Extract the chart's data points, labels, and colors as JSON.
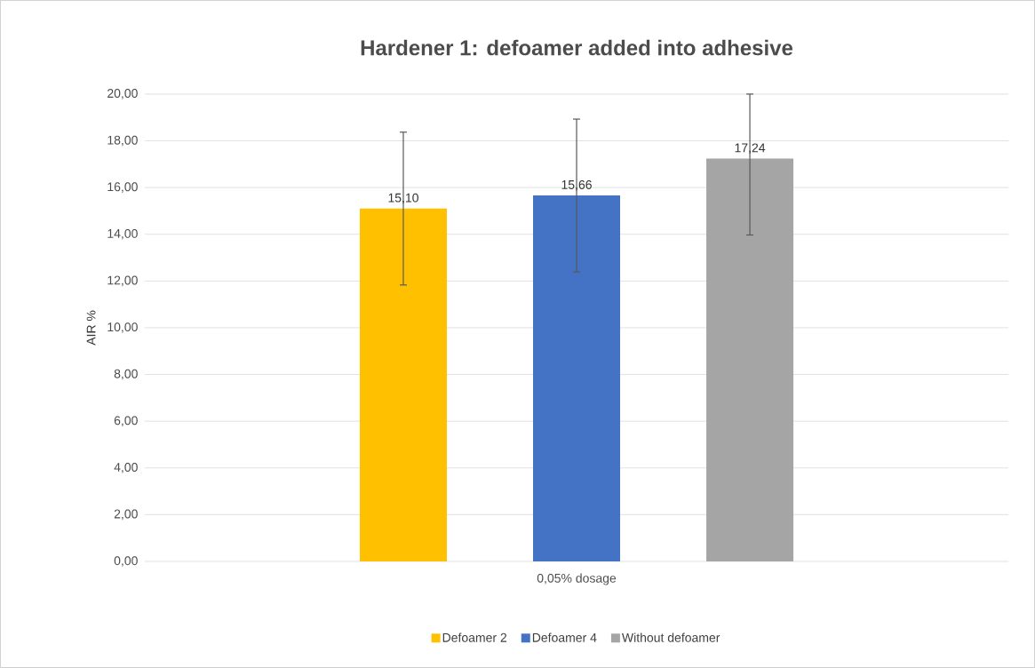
{
  "chart_data": {
    "type": "bar",
    "title": "Hardener 1: defoamer added into adhesive",
    "ylabel": "AIR %",
    "categories": [
      "0,05% dosage"
    ],
    "series": [
      {
        "name": "Defoamer 2",
        "color": "#ffc000",
        "values": [
          15.1
        ],
        "errors": [
          3.27
        ],
        "value_labels": [
          "15,10"
        ]
      },
      {
        "name": "Defoamer 4",
        "color": "#4472c4",
        "values": [
          15.66
        ],
        "errors": [
          3.27
        ],
        "value_labels": [
          "15,66"
        ]
      },
      {
        "name": "Without defoamer",
        "color": "#a5a5a5",
        "values": [
          17.24
        ],
        "errors": [
          [
            13.97,
            20
          ]
        ],
        "value_labels": [
          "17,24"
        ]
      }
    ],
    "ylim": [
      0,
      20
    ],
    "yticks": [
      {
        "value": 0,
        "label": "0,00"
      },
      {
        "value": 2,
        "label": "2,00"
      },
      {
        "value": 4,
        "label": "4,00"
      },
      {
        "value": 6,
        "label": "6,00"
      },
      {
        "value": 8,
        "label": "8,00"
      },
      {
        "value": 10,
        "label": "10,00"
      },
      {
        "value": 12,
        "label": "12,00"
      },
      {
        "value": 14,
        "label": "14,00"
      },
      {
        "value": 16,
        "label": "16,00"
      },
      {
        "value": 18,
        "label": "18,00"
      },
      {
        "value": 20,
        "label": "20,00"
      }
    ],
    "grid": "y",
    "legend": "bottom"
  }
}
